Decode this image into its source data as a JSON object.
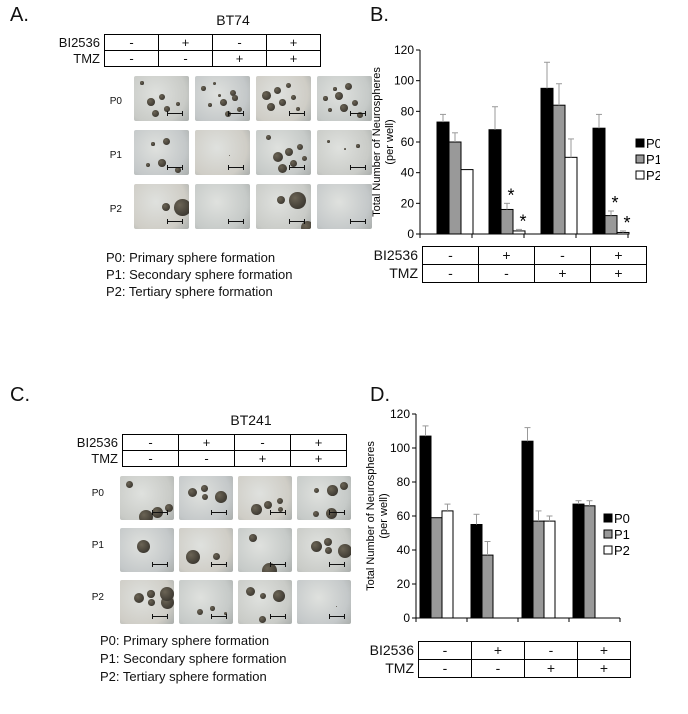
{
  "panels": {
    "A": {
      "letter": "A.",
      "title": "BT74",
      "treat_labels": [
        "BI2536",
        "TMZ"
      ],
      "bi2536": [
        "-",
        "+",
        "-",
        "+"
      ],
      "tmz": [
        "-",
        "-",
        "+",
        "+"
      ],
      "rows": [
        "P0",
        "P1",
        "P2"
      ],
      "legend": [
        "P0: Primary sphere formation",
        "P1: Secondary sphere formation",
        "P2: Tertiary sphere formation"
      ]
    },
    "C": {
      "letter": "C.",
      "title": "BT241",
      "treat_labels": [
        "BI2536",
        "TMZ"
      ],
      "bi2536": [
        "-",
        "+",
        "-",
        "+"
      ],
      "tmz": [
        "-",
        "-",
        "+",
        "+"
      ],
      "rows": [
        "P0",
        "P1",
        "P2"
      ],
      "legend": [
        "P0: Primary sphere formation",
        "P1: Secondary sphere formation",
        "P2: Tertiary sphere formation"
      ]
    },
    "B": {
      "letter": "B.",
      "treat_labels": [
        "BI2536",
        "TMZ"
      ],
      "bi2536": [
        "-",
        "+",
        "-",
        "+"
      ],
      "tmz": [
        "-",
        "-",
        "+",
        "+"
      ]
    },
    "D": {
      "letter": "D.",
      "treat_labels": [
        "BI2536",
        "TMZ"
      ],
      "bi2536": [
        "-",
        "+",
        "-",
        "+"
      ],
      "tmz": [
        "-",
        "-",
        "+",
        "+"
      ]
    }
  },
  "chart_data": [
    {
      "id": "B",
      "type": "bar",
      "ylabel": "Total Number of Neurospheres (per well)",
      "ylim": [
        0,
        120
      ],
      "yticks": [
        0,
        20,
        40,
        60,
        80,
        100,
        120
      ],
      "series": [
        {
          "name": "P0",
          "color": "#000000",
          "values": [
            73,
            68,
            95,
            69
          ],
          "errors": [
            5,
            15,
            17,
            9
          ]
        },
        {
          "name": "P1",
          "color": "#999999",
          "values": [
            60,
            16,
            84,
            12
          ],
          "errors": [
            6,
            4,
            14,
            3
          ]
        },
        {
          "name": "P2",
          "color": "#ffffff",
          "values": [
            42,
            2,
            50,
            1
          ],
          "errors": [
            0,
            1,
            12,
            1
          ]
        }
      ],
      "significance": [
        {
          "group": 1,
          "series": 1,
          "label": "*"
        },
        {
          "group": 1,
          "series": 2,
          "label": "*"
        },
        {
          "group": 3,
          "series": 1,
          "label": "*"
        },
        {
          "group": 3,
          "series": 2,
          "label": "*"
        }
      ],
      "legend_position": "right"
    },
    {
      "id": "D",
      "type": "bar",
      "ylabel": "Total Number of Neurospheres (per well)",
      "ylim": [
        0,
        120
      ],
      "yticks": [
        0,
        20,
        40,
        60,
        80,
        100,
        120
      ],
      "series": [
        {
          "name": "P0",
          "color": "#000000",
          "values": [
            107,
            55,
            104,
            67
          ],
          "errors": [
            6,
            6,
            8,
            2
          ]
        },
        {
          "name": "P1",
          "color": "#999999",
          "values": [
            59,
            37,
            57,
            66
          ],
          "errors": [
            0,
            8,
            6,
            3
          ]
        },
        {
          "name": "P2",
          "color": "#ffffff",
          "values": [
            63,
            0,
            57,
            0
          ],
          "errors": [
            4,
            0,
            3,
            0
          ]
        }
      ],
      "significance": [],
      "legend_position": "right"
    }
  ]
}
